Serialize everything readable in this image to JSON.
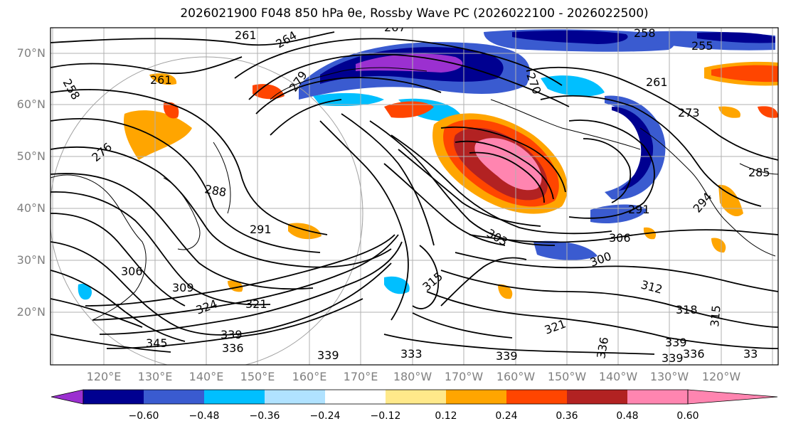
{
  "title": "2026021900 F048 850 hPa θe, Rossby Wave PC (2026022100 - 2026022500)",
  "lat_labels": [
    "70°N",
    "60°N",
    "50°N",
    "40°N",
    "30°N",
    "20°N"
  ],
  "lon_labels": [
    "120°E",
    "130°E",
    "140°E",
    "150°E",
    "160°E",
    "170°E",
    "180°W",
    "170°W",
    "160°W",
    "150°W",
    "140°W",
    "130°W",
    "120°W"
  ],
  "colorbar": {
    "ticks": [
      "−0.60",
      "−0.48",
      "−0.36",
      "−0.24",
      "−0.12",
      "0.12",
      "0.24",
      "0.36",
      "0.48",
      "0.60"
    ],
    "colors": [
      "#9b30d0",
      "#000090",
      "#3a5bd0",
      "#00bfff",
      "#b0e2ff",
      "#ffffff",
      "#ffe98a",
      "#ffa500",
      "#ff4500",
      "#b22222",
      "#ff85b0"
    ]
  },
  "contour_labels": [
    "261",
    "264",
    "267",
    "279",
    "258",
    "255",
    "261",
    "270",
    "258",
    "261",
    "276",
    "273",
    "285",
    "288",
    "291",
    "294",
    "291",
    "303",
    "306",
    "300",
    "312",
    "306",
    "309",
    "315",
    "318",
    "315",
    "321",
    "324",
    "321",
    "339",
    "336",
    "345",
    "339",
    "333",
    "339",
    "336",
    "339",
    "336",
    "339",
    "33"
  ]
}
